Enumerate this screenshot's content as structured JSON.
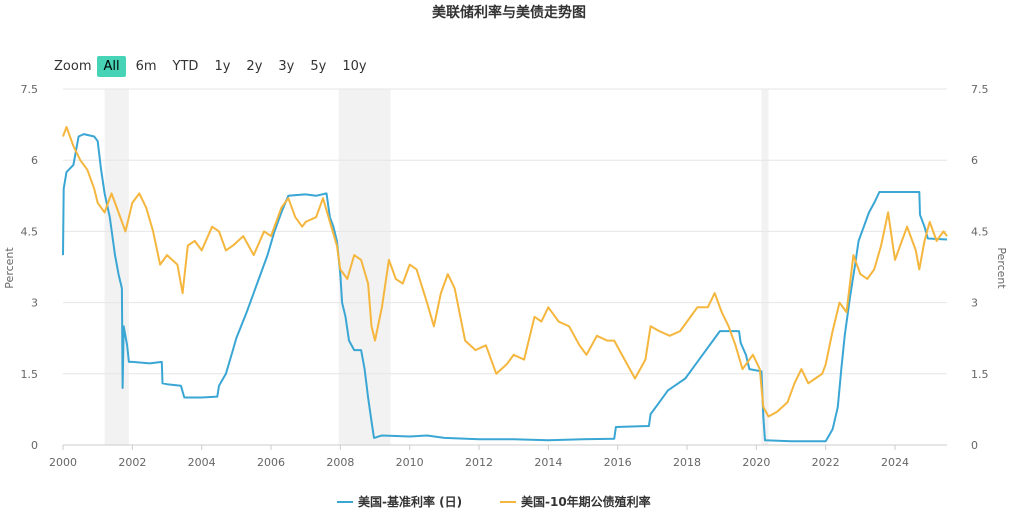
{
  "chart_data": {
    "type": "line",
    "title": "美联储利率与美债走势图",
    "ylabel_left": "Percent",
    "ylabel_right": "Percent",
    "ylim": [
      0,
      7.5
    ],
    "xlim": [
      2000,
      2025.5
    ],
    "y_ticks": [
      "0",
      "1.5",
      "3",
      "4.5",
      "6",
      "7.5"
    ],
    "x_ticks": [
      "2000",
      "2002",
      "2004",
      "2006",
      "2008",
      "2010",
      "2012",
      "2014",
      "2016",
      "2018",
      "2020",
      "2022",
      "2024"
    ],
    "recession_bands": [
      [
        2001.2,
        2001.9
      ],
      [
        2007.95,
        2009.45
      ],
      [
        2020.15,
        2020.35
      ]
    ],
    "legend_position": "bottom-center",
    "series": [
      {
        "name": "美国-基准利率 (日)",
        "color": "#3aa6d4",
        "points": [
          [
            2000.0,
            4.0
          ],
          [
            2000.02,
            5.4
          ],
          [
            2000.1,
            5.75
          ],
          [
            2000.3,
            5.9
          ],
          [
            2000.45,
            6.5
          ],
          [
            2000.6,
            6.55
          ],
          [
            2000.9,
            6.5
          ],
          [
            2001.0,
            6.4
          ],
          [
            2001.1,
            5.8
          ],
          [
            2001.2,
            5.3
          ],
          [
            2001.35,
            4.8
          ],
          [
            2001.5,
            4.0
          ],
          [
            2001.6,
            3.6
          ],
          [
            2001.7,
            3.3
          ],
          [
            2001.72,
            1.2
          ],
          [
            2001.75,
            2.5
          ],
          [
            2001.85,
            2.1
          ],
          [
            2001.9,
            1.75
          ],
          [
            2002.0,
            1.75
          ],
          [
            2002.5,
            1.72
          ],
          [
            2002.85,
            1.75
          ],
          [
            2002.87,
            1.3
          ],
          [
            2003.0,
            1.28
          ],
          [
            2003.4,
            1.25
          ],
          [
            2003.5,
            1.0
          ],
          [
            2004.0,
            1.0
          ],
          [
            2004.45,
            1.02
          ],
          [
            2004.5,
            1.25
          ],
          [
            2004.7,
            1.5
          ],
          [
            2004.9,
            2.0
          ],
          [
            2005.0,
            2.25
          ],
          [
            2005.3,
            2.8
          ],
          [
            2005.6,
            3.4
          ],
          [
            2005.9,
            4.0
          ],
          [
            2006.1,
            4.5
          ],
          [
            2006.3,
            4.9
          ],
          [
            2006.5,
            5.25
          ],
          [
            2006.8,
            5.27
          ],
          [
            2007.0,
            5.28
          ],
          [
            2007.3,
            5.25
          ],
          [
            2007.6,
            5.3
          ],
          [
            2007.7,
            4.8
          ],
          [
            2007.8,
            4.6
          ],
          [
            2007.9,
            4.3
          ],
          [
            2008.0,
            3.6
          ],
          [
            2008.05,
            3.0
          ],
          [
            2008.15,
            2.7
          ],
          [
            2008.25,
            2.2
          ],
          [
            2008.4,
            2.0
          ],
          [
            2008.6,
            2.0
          ],
          [
            2008.7,
            1.6
          ],
          [
            2008.8,
            1.0
          ],
          [
            2008.9,
            0.5
          ],
          [
            2008.97,
            0.15
          ],
          [
            2009.2,
            0.2
          ],
          [
            2010.0,
            0.18
          ],
          [
            2010.5,
            0.2
          ],
          [
            2011.0,
            0.15
          ],
          [
            2012.0,
            0.12
          ],
          [
            2013.0,
            0.12
          ],
          [
            2014.0,
            0.1
          ],
          [
            2015.0,
            0.12
          ],
          [
            2015.9,
            0.13
          ],
          [
            2015.95,
            0.38
          ],
          [
            2016.9,
            0.4
          ],
          [
            2016.95,
            0.65
          ],
          [
            2017.2,
            0.9
          ],
          [
            2017.45,
            1.15
          ],
          [
            2017.95,
            1.4
          ],
          [
            2018.2,
            1.65
          ],
          [
            2018.45,
            1.9
          ],
          [
            2018.7,
            2.15
          ],
          [
            2018.95,
            2.4
          ],
          [
            2019.5,
            2.4
          ],
          [
            2019.55,
            2.15
          ],
          [
            2019.7,
            1.9
          ],
          [
            2019.8,
            1.6
          ],
          [
            2020.15,
            1.55
          ],
          [
            2020.2,
            0.6
          ],
          [
            2020.25,
            0.1
          ],
          [
            2021.0,
            0.08
          ],
          [
            2022.0,
            0.08
          ],
          [
            2022.2,
            0.33
          ],
          [
            2022.35,
            0.8
          ],
          [
            2022.45,
            1.6
          ],
          [
            2022.55,
            2.3
          ],
          [
            2022.7,
            3.1
          ],
          [
            2022.85,
            3.8
          ],
          [
            2022.95,
            4.3
          ],
          [
            2023.1,
            4.6
          ],
          [
            2023.25,
            4.9
          ],
          [
            2023.4,
            5.1
          ],
          [
            2023.55,
            5.33
          ],
          [
            2024.0,
            5.33
          ],
          [
            2024.7,
            5.33
          ],
          [
            2024.72,
            4.85
          ],
          [
            2024.85,
            4.6
          ],
          [
            2024.95,
            4.35
          ],
          [
            2025.5,
            4.33
          ]
        ]
      },
      {
        "name": "美国-10年期公债殖利率",
        "color": "#f5b63e",
        "points": [
          [
            2000.0,
            6.5
          ],
          [
            2000.1,
            6.7
          ],
          [
            2000.3,
            6.3
          ],
          [
            2000.5,
            6.0
          ],
          [
            2000.7,
            5.8
          ],
          [
            2000.9,
            5.4
          ],
          [
            2001.0,
            5.1
          ],
          [
            2001.2,
            4.9
          ],
          [
            2001.4,
            5.3
          ],
          [
            2001.6,
            4.9
          ],
          [
            2001.8,
            4.5
          ],
          [
            2001.9,
            4.8
          ],
          [
            2002.0,
            5.1
          ],
          [
            2002.2,
            5.3
          ],
          [
            2002.4,
            5.0
          ],
          [
            2002.6,
            4.5
          ],
          [
            2002.8,
            3.8
          ],
          [
            2003.0,
            4.0
          ],
          [
            2003.3,
            3.8
          ],
          [
            2003.45,
            3.2
          ],
          [
            2003.6,
            4.2
          ],
          [
            2003.8,
            4.3
          ],
          [
            2004.0,
            4.1
          ],
          [
            2004.3,
            4.6
          ],
          [
            2004.5,
            4.5
          ],
          [
            2004.7,
            4.1
          ],
          [
            2004.9,
            4.2
          ],
          [
            2005.2,
            4.4
          ],
          [
            2005.5,
            4.0
          ],
          [
            2005.8,
            4.5
          ],
          [
            2006.0,
            4.4
          ],
          [
            2006.3,
            5.0
          ],
          [
            2006.5,
            5.2
          ],
          [
            2006.7,
            4.8
          ],
          [
            2006.9,
            4.6
          ],
          [
            2007.0,
            4.7
          ],
          [
            2007.3,
            4.8
          ],
          [
            2007.5,
            5.2
          ],
          [
            2007.7,
            4.7
          ],
          [
            2007.9,
            4.2
          ],
          [
            2008.0,
            3.7
          ],
          [
            2008.2,
            3.5
          ],
          [
            2008.4,
            4.0
          ],
          [
            2008.6,
            3.9
          ],
          [
            2008.8,
            3.4
          ],
          [
            2008.9,
            2.5
          ],
          [
            2009.0,
            2.2
          ],
          [
            2009.2,
            2.9
          ],
          [
            2009.4,
            3.9
          ],
          [
            2009.6,
            3.5
          ],
          [
            2009.8,
            3.4
          ],
          [
            2010.0,
            3.8
          ],
          [
            2010.2,
            3.7
          ],
          [
            2010.5,
            3.0
          ],
          [
            2010.7,
            2.5
          ],
          [
            2010.9,
            3.2
          ],
          [
            2011.1,
            3.6
          ],
          [
            2011.3,
            3.3
          ],
          [
            2011.6,
            2.2
          ],
          [
            2011.9,
            2.0
          ],
          [
            2012.2,
            2.1
          ],
          [
            2012.5,
            1.5
          ],
          [
            2012.8,
            1.7
          ],
          [
            2013.0,
            1.9
          ],
          [
            2013.3,
            1.8
          ],
          [
            2013.6,
            2.7
          ],
          [
            2013.8,
            2.6
          ],
          [
            2014.0,
            2.9
          ],
          [
            2014.3,
            2.6
          ],
          [
            2014.6,
            2.5
          ],
          [
            2014.9,
            2.1
          ],
          [
            2015.1,
            1.9
          ],
          [
            2015.4,
            2.3
          ],
          [
            2015.7,
            2.2
          ],
          [
            2015.9,
            2.2
          ],
          [
            2016.2,
            1.8
          ],
          [
            2016.5,
            1.4
          ],
          [
            2016.8,
            1.8
          ],
          [
            2016.95,
            2.5
          ],
          [
            2017.2,
            2.4
          ],
          [
            2017.5,
            2.3
          ],
          [
            2017.8,
            2.4
          ],
          [
            2018.0,
            2.6
          ],
          [
            2018.3,
            2.9
          ],
          [
            2018.6,
            2.9
          ],
          [
            2018.8,
            3.2
          ],
          [
            2019.0,
            2.8
          ],
          [
            2019.2,
            2.5
          ],
          [
            2019.4,
            2.1
          ],
          [
            2019.6,
            1.6
          ],
          [
            2019.9,
            1.9
          ],
          [
            2020.1,
            1.6
          ],
          [
            2020.2,
            0.8
          ],
          [
            2020.35,
            0.6
          ],
          [
            2020.6,
            0.7
          ],
          [
            2020.9,
            0.9
          ],
          [
            2021.1,
            1.3
          ],
          [
            2021.3,
            1.6
          ],
          [
            2021.5,
            1.3
          ],
          [
            2021.7,
            1.4
          ],
          [
            2021.9,
            1.5
          ],
          [
            2022.0,
            1.7
          ],
          [
            2022.2,
            2.4
          ],
          [
            2022.4,
            3.0
          ],
          [
            2022.6,
            2.8
          ],
          [
            2022.8,
            4.0
          ],
          [
            2023.0,
            3.6
          ],
          [
            2023.2,
            3.5
          ],
          [
            2023.4,
            3.7
          ],
          [
            2023.6,
            4.2
          ],
          [
            2023.8,
            4.9
          ],
          [
            2024.0,
            3.9
          ],
          [
            2024.2,
            4.3
          ],
          [
            2024.35,
            4.6
          ],
          [
            2024.6,
            4.1
          ],
          [
            2024.7,
            3.7
          ],
          [
            2024.85,
            4.3
          ],
          [
            2025.0,
            4.7
          ],
          [
            2025.2,
            4.3
          ],
          [
            2025.4,
            4.5
          ],
          [
            2025.5,
            4.4
          ]
        ]
      }
    ]
  },
  "range_selector": {
    "zoom_label": "Zoom",
    "buttons": [
      "All",
      "6m",
      "YTD",
      "1y",
      "2y",
      "3y",
      "5y",
      "10y"
    ],
    "selected": "All"
  },
  "colors": {
    "grid": "#e6e6e6",
    "axis_text": "#666666",
    "band": "#f2f2f2",
    "range_active": "#47d4b6"
  }
}
